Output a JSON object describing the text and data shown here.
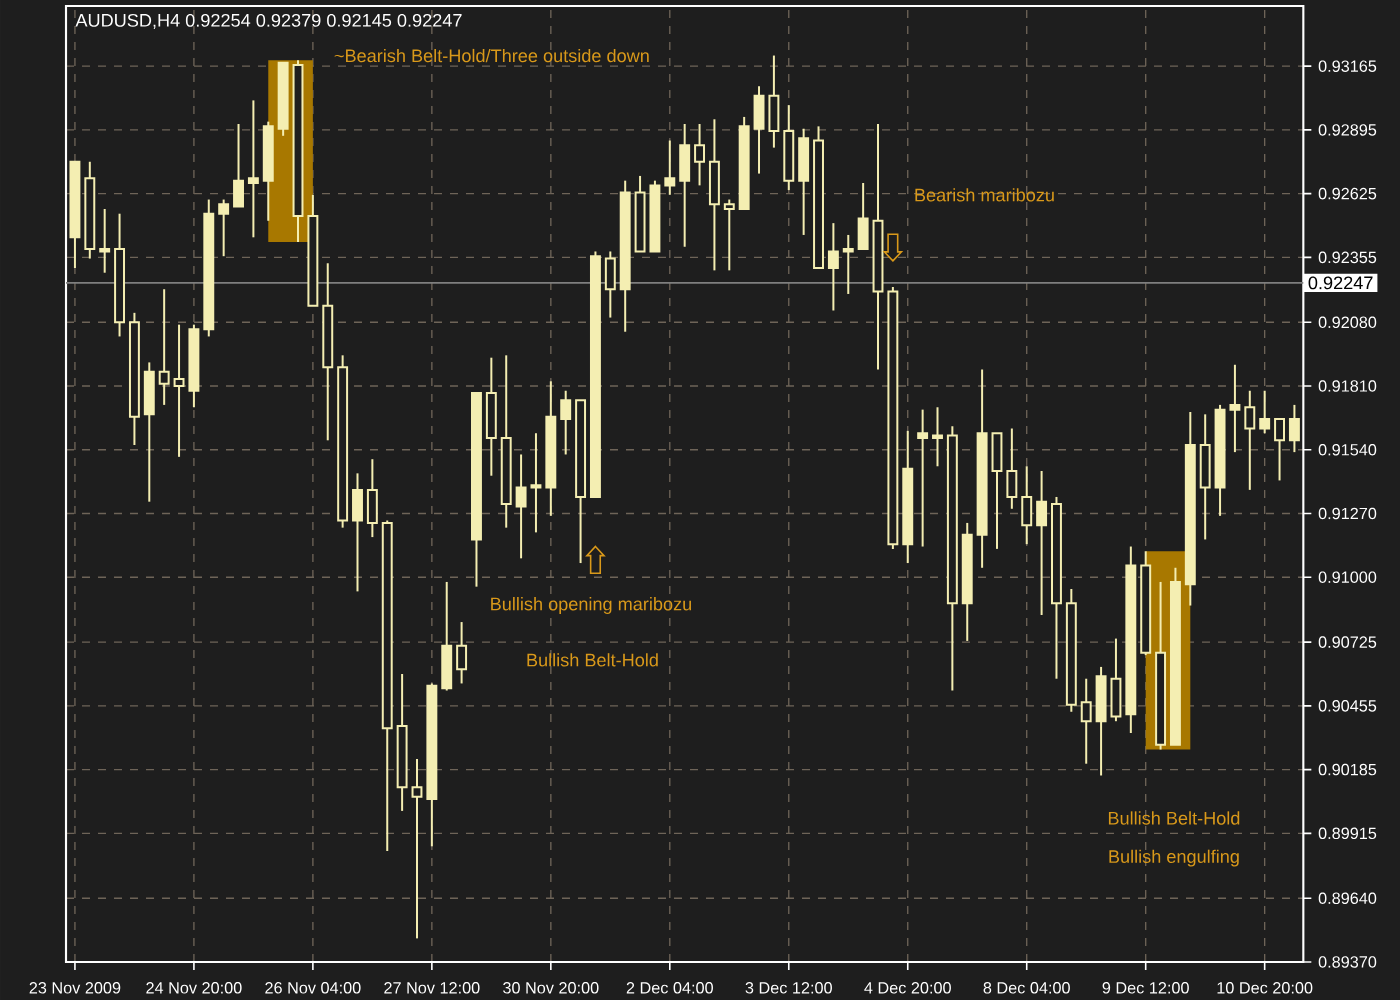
{
  "chart_data": {
    "type": "candlestick",
    "title": "AUDUSD,H4 0.92254 0.92379 0.92145 0.92247",
    "color": "#f4eeb2",
    "grid": true,
    "categories": [
      "23 Nov 2009",
      null,
      null,
      null,
      null,
      null,
      null,
      null,
      "24 Nov 20:00",
      null,
      null,
      null,
      null,
      null,
      null,
      null,
      "26 Nov 04:00",
      null,
      null,
      null,
      null,
      null,
      null,
      null,
      "27 Nov 12:00",
      null,
      null,
      null,
      null,
      null,
      null,
      null,
      "30 Nov 20:00",
      null,
      null,
      null,
      null,
      null,
      null,
      null,
      "2 Dec 04:00",
      null,
      null,
      null,
      null,
      null,
      null,
      null,
      "3 Dec 12:00",
      null,
      null,
      null,
      null,
      null,
      null,
      null,
      "4 Dec 20:00",
      null,
      null,
      null,
      null,
      null,
      null,
      null,
      "8 Dec 04:00",
      null,
      null,
      null,
      null,
      null,
      null,
      null,
      "9 Dec 12:00",
      null,
      null,
      null,
      null,
      null,
      null,
      null,
      "10 Dec 20:00",
      null,
      null
    ],
    "ohlc": [
      [
        0.9244,
        0.9276,
        0.9231,
        0.9276
      ],
      [
        0.9269,
        0.9276,
        0.9235,
        0.9239
      ],
      [
        0.9238,
        0.9256,
        0.9229,
        0.9239
      ],
      [
        0.9239,
        0.9254,
        0.9202,
        0.9208
      ],
      [
        0.9208,
        0.9212,
        0.9156,
        0.9168
      ],
      [
        0.9169,
        0.9191,
        0.9132,
        0.9187
      ],
      [
        0.9187,
        0.9222,
        0.9173,
        0.9182
      ],
      [
        0.9184,
        0.9207,
        0.9151,
        0.9181
      ],
      [
        0.9179,
        0.9207,
        0.9172,
        0.9205
      ],
      [
        0.9205,
        0.926,
        0.9202,
        0.9254
      ],
      [
        0.9254,
        0.926,
        0.9236,
        0.9258
      ],
      [
        0.9257,
        0.9292,
        0.9257,
        0.9268
      ],
      [
        0.9267,
        0.9302,
        0.9244,
        0.9269
      ],
      [
        0.9268,
        0.9293,
        0.9251,
        0.9291
      ],
      [
        0.929,
        0.9318,
        0.9287,
        0.9318
      ],
      [
        0.9317,
        0.9319,
        0.9242,
        0.9253
      ],
      [
        0.9253,
        0.9262,
        0.9215,
        0.9215
      ],
      [
        0.9215,
        0.9233,
        0.9158,
        0.9189
      ],
      [
        0.9189,
        0.9194,
        0.9121,
        0.9124
      ],
      [
        0.9124,
        0.9144,
        0.9094,
        0.9137
      ],
      [
        0.9137,
        0.915,
        0.9117,
        0.9123
      ],
      [
        0.9123,
        0.9124,
        0.8984,
        0.9036
      ],
      [
        0.9037,
        0.9059,
        0.9001,
        0.9011
      ],
      [
        0.9011,
        0.9023,
        0.8947,
        0.9007
      ],
      [
        0.9006,
        0.9055,
        0.8986,
        0.9054
      ],
      [
        0.9053,
        0.9098,
        0.9052,
        0.9071
      ],
      [
        0.9071,
        0.9081,
        0.9055,
        0.9061
      ],
      [
        0.9116,
        0.9178,
        0.9096,
        0.9178
      ],
      [
        0.9178,
        0.9193,
        0.9143,
        0.9159
      ],
      [
        0.9159,
        0.9194,
        0.9121,
        0.9131
      ],
      [
        0.913,
        0.9152,
        0.9108,
        0.9138
      ],
      [
        0.9138,
        0.9161,
        0.9119,
        0.9139
      ],
      [
        0.9138,
        0.9183,
        0.9126,
        0.9168
      ],
      [
        0.9167,
        0.9179,
        0.9152,
        0.9175
      ],
      [
        0.9175,
        0.9175,
        0.9106,
        0.9134
      ],
      [
        0.9134,
        0.9238,
        0.9134,
        0.9236
      ],
      [
        0.9235,
        0.9238,
        0.921,
        0.9222
      ],
      [
        0.9222,
        0.9268,
        0.9204,
        0.9263
      ],
      [
        0.9263,
        0.927,
        0.9238,
        0.9238
      ],
      [
        0.9238,
        0.9268,
        0.9238,
        0.9266
      ],
      [
        0.9266,
        0.9285,
        0.9262,
        0.9269
      ],
      [
        0.9268,
        0.9292,
        0.924,
        0.9283
      ],
      [
        0.9283,
        0.9292,
        0.9266,
        0.9276
      ],
      [
        0.9276,
        0.9294,
        0.923,
        0.9258
      ],
      [
        0.9258,
        0.926,
        0.923,
        0.9256
      ],
      [
        0.9256,
        0.9295,
        0.9256,
        0.9291
      ],
      [
        0.929,
        0.9308,
        0.9271,
        0.9304
      ],
      [
        0.9304,
        0.9321,
        0.9282,
        0.9289
      ],
      [
        0.9289,
        0.93,
        0.9264,
        0.9268
      ],
      [
        0.9268,
        0.929,
        0.9245,
        0.9286
      ],
      [
        0.9285,
        0.9291,
        0.9231,
        0.9231
      ],
      [
        0.9231,
        0.925,
        0.9213,
        0.9238
      ],
      [
        0.9238,
        0.9245,
        0.922,
        0.9239
      ],
      [
        0.9239,
        0.9267,
        0.9239,
        0.9252
      ],
      [
        0.9251,
        0.9292,
        0.9188,
        0.9221
      ],
      [
        0.9221,
        0.9223,
        0.9112,
        0.9114
      ],
      [
        0.9114,
        0.9162,
        0.9106,
        0.9146
      ],
      [
        0.9159,
        0.9171,
        0.9113,
        0.9161
      ],
      [
        0.9159,
        0.9172,
        0.9147,
        0.916
      ],
      [
        0.916,
        0.9164,
        0.9052,
        0.9089
      ],
      [
        0.9089,
        0.9123,
        0.9073,
        0.9118
      ],
      [
        0.9118,
        0.9188,
        0.9104,
        0.9161
      ],
      [
        0.9161,
        0.9161,
        0.9112,
        0.9145
      ],
      [
        0.9145,
        0.9163,
        0.9129,
        0.9134
      ],
      [
        0.9134,
        0.9147,
        0.9114,
        0.9122
      ],
      [
        0.9122,
        0.9145,
        0.9084,
        0.9132
      ],
      [
        0.9131,
        0.9134,
        0.9057,
        0.9089
      ],
      [
        0.9089,
        0.9095,
        0.9043,
        0.9046
      ],
      [
        0.9047,
        0.9057,
        0.9021,
        0.9039
      ],
      [
        0.9039,
        0.9062,
        0.9016,
        0.9058
      ],
      [
        0.9057,
        0.9074,
        0.9039,
        0.9041
      ],
      [
        0.9042,
        0.9113,
        0.9034,
        0.9105
      ],
      [
        0.9105,
        0.9111,
        0.9067,
        0.9068
      ],
      [
        0.9068,
        0.9098,
        0.9027,
        0.9029
      ],
      [
        0.9029,
        0.9104,
        0.9029,
        0.9098
      ],
      [
        0.9097,
        0.917,
        0.9088,
        0.9156
      ],
      [
        0.9156,
        0.9169,
        0.9116,
        0.9138
      ],
      [
        0.9138,
        0.9173,
        0.9126,
        0.9171
      ],
      [
        0.9171,
        0.919,
        0.9153,
        0.9173
      ],
      [
        0.9172,
        0.9179,
        0.9137,
        0.9163
      ],
      [
        0.9163,
        0.9179,
        0.9161,
        0.9167
      ],
      [
        0.9167,
        0.9167,
        0.9141,
        0.9158
      ],
      [
        0.9158,
        0.9173,
        0.9153,
        0.9167
      ]
    ],
    "ylim": [
      0.8937,
      0.9342
    ],
    "yticks": [
      0.93165,
      0.92895,
      0.92625,
      0.92355,
      {
        "value": 0.9208,
        "label": "0.92080"
      },
      {
        "value": 0.9181,
        "label": "0.91810"
      },
      {
        "value": 0.9154,
        "label": "0.91540"
      },
      {
        "value": 0.9127,
        "label": "0.91270"
      },
      {
        "value": 0.91,
        "label": "0.91000"
      },
      0.90725,
      0.90455,
      0.90185,
      0.89915,
      {
        "value": 0.8964,
        "label": "0.89640"
      },
      {
        "value": 0.8937,
        "label": "0.89370"
      }
    ],
    "ref_lines": [
      {
        "axis": "y",
        "value": 0.92247,
        "label": "0.92247",
        "color": "#7f7f7f"
      }
    ],
    "annotations": [
      "~Bearish Belt-Hold/Three outside down",
      "Bearish maribozu",
      "Bullish opening maribozu",
      "Bullish Belt-Hold",
      "Bullish Belt-Hold",
      "Bullish engulfing"
    ]
  }
}
